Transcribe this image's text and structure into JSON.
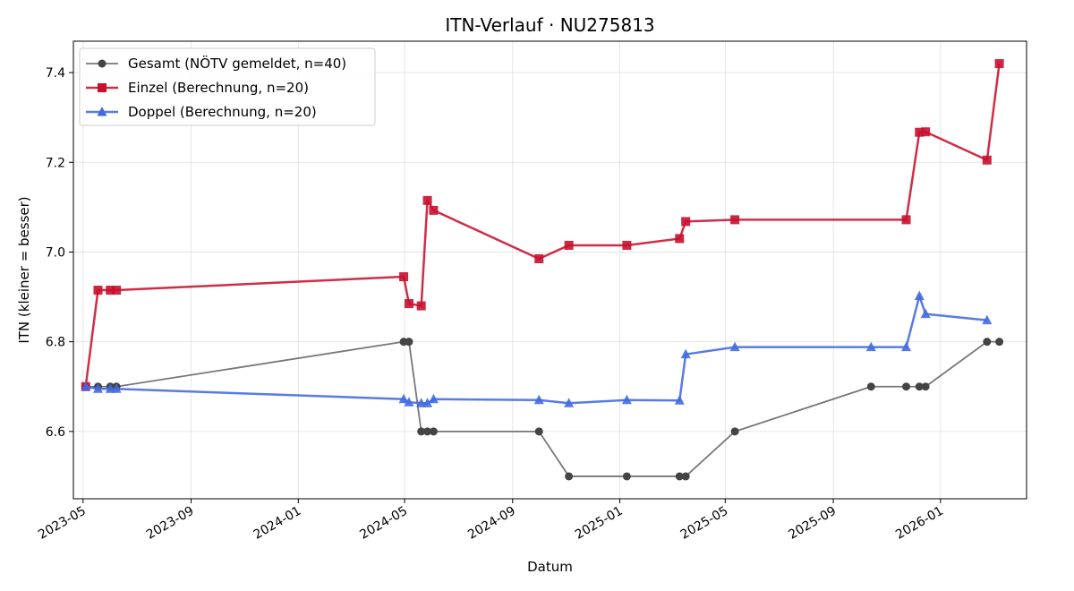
{
  "chart_data": {
    "type": "line",
    "title": "ITN-Verlauf · NU275813",
    "xlabel": "Datum",
    "ylabel": "ITN  (kleiner = besser)",
    "x_ticks": [
      "2023-05-01",
      "2023-09-01",
      "2024-01-01",
      "2024-05-01",
      "2024-09-01",
      "2025-01-01",
      "2025-05-01",
      "2025-09-01",
      "2026-01-01"
    ],
    "y_ticks": [
      6.6,
      6.8,
      7.0,
      7.2,
      7.4
    ],
    "xlim": [
      "2023-04-20",
      "2026-04-09"
    ],
    "ylim": [
      6.45,
      7.47
    ],
    "grid": true,
    "legend_position": "top-left",
    "series": [
      {
        "name": "Gesamt (NÖTV gemeldet, n=40)",
        "color": "#444444",
        "marker": "circle",
        "points": [
          [
            "2023-05-04",
            6.7
          ],
          [
            "2023-05-18",
            6.7
          ],
          [
            "2023-06-01",
            6.7
          ],
          [
            "2023-06-08",
            6.7
          ],
          [
            "2024-04-30",
            6.8
          ],
          [
            "2024-05-06",
            6.8
          ],
          [
            "2024-05-20",
            6.6
          ],
          [
            "2024-05-27",
            6.6
          ],
          [
            "2024-06-03",
            6.6
          ],
          [
            "2024-10-01",
            6.6
          ],
          [
            "2024-11-04",
            6.5
          ],
          [
            "2025-01-09",
            6.5
          ],
          [
            "2025-03-10",
            6.5
          ],
          [
            "2025-03-17",
            6.5
          ],
          [
            "2025-05-12",
            6.6
          ],
          [
            "2025-10-14",
            6.7
          ],
          [
            "2025-11-23",
            6.7
          ],
          [
            "2025-12-08",
            6.7
          ],
          [
            "2025-12-15",
            6.7
          ],
          [
            "2026-02-23",
            6.8
          ],
          [
            "2026-03-09",
            6.8
          ]
        ]
      },
      {
        "name": "Einzel (Berechnung, n=20)",
        "color": "#C8102E",
        "marker": "square",
        "points": [
          [
            "2023-05-04",
            6.7
          ],
          [
            "2023-05-18",
            6.915
          ],
          [
            "2023-06-01",
            6.915
          ],
          [
            "2023-06-08",
            6.915
          ],
          [
            "2024-04-30",
            6.945
          ],
          [
            "2024-05-06",
            6.885
          ],
          [
            "2024-05-20",
            6.88
          ],
          [
            "2024-05-27",
            7.115
          ],
          [
            "2024-06-03",
            7.093
          ],
          [
            "2024-10-01",
            6.985
          ],
          [
            "2024-11-04",
            7.015
          ],
          [
            "2025-01-09",
            7.015
          ],
          [
            "2025-03-10",
            7.03
          ],
          [
            "2025-03-17",
            7.068
          ],
          [
            "2025-05-12",
            7.072
          ],
          [
            "2025-11-23",
            7.072
          ],
          [
            "2025-12-08",
            7.267
          ],
          [
            "2025-12-15",
            7.268
          ],
          [
            "2026-02-23",
            7.205
          ],
          [
            "2026-03-09",
            7.42
          ]
        ]
      },
      {
        "name": "Doppel (Berechnung, n=20)",
        "color": "#4169E1",
        "marker": "triangle",
        "points": [
          [
            "2023-05-04",
            6.7
          ],
          [
            "2023-05-18",
            6.695
          ],
          [
            "2023-06-01",
            6.695
          ],
          [
            "2023-06-08",
            6.695
          ],
          [
            "2024-04-30",
            6.672
          ],
          [
            "2024-05-06",
            6.665
          ],
          [
            "2024-05-20",
            6.663
          ],
          [
            "2024-05-27",
            6.663
          ],
          [
            "2024-06-03",
            6.672
          ],
          [
            "2024-10-01",
            6.67
          ],
          [
            "2024-11-04",
            6.663
          ],
          [
            "2025-01-09",
            6.67
          ],
          [
            "2025-03-10",
            6.669
          ],
          [
            "2025-03-17",
            6.772
          ],
          [
            "2025-05-12",
            6.788
          ],
          [
            "2025-10-14",
            6.788
          ],
          [
            "2025-11-23",
            6.788
          ],
          [
            "2025-12-08",
            6.902
          ],
          [
            "2025-12-15",
            6.862
          ],
          [
            "2026-02-23",
            6.848
          ]
        ]
      }
    ]
  }
}
